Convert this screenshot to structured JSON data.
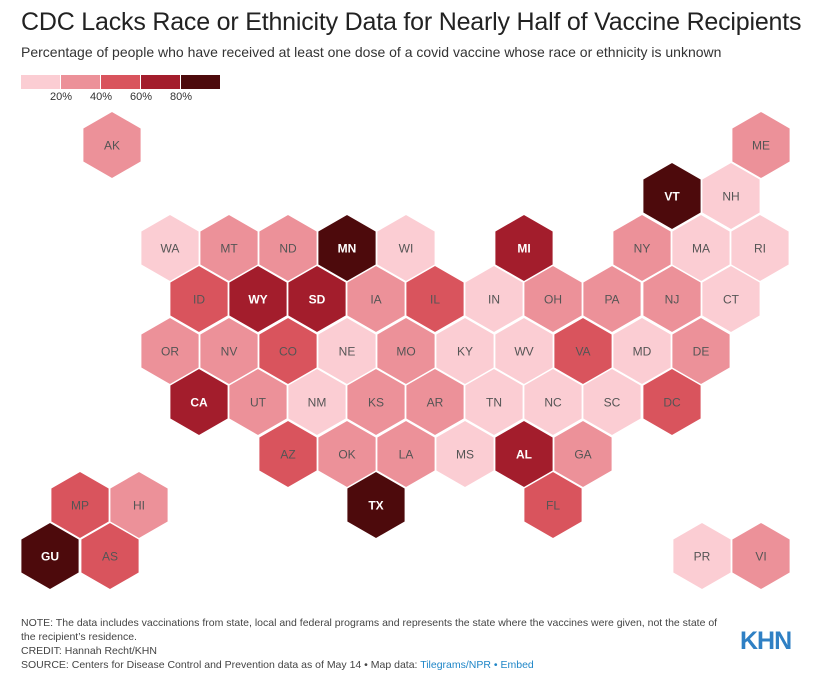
{
  "title": "CDC Lacks Race or Ethnicity Data for Nearly Half of Vaccine Recipients",
  "subtitle": "Percentage of people who have received at least one dose of a covid vaccine whose race or ethnicity is unknown",
  "legend": {
    "colors": [
      "#fbcdd3",
      "#ec9199",
      "#d9545d",
      "#a31d2c",
      "#4d0a0c"
    ],
    "ticks": [
      "20%",
      "40%",
      "60%",
      "80%"
    ]
  },
  "bin_colors": [
    "#fbcdd3",
    "#ec9199",
    "#d9545d",
    "#a31d2c",
    "#4d0a0c"
  ],
  "states": [
    {
      "abbr": "AK",
      "bin": 1
    },
    {
      "abbr": "ME",
      "bin": 1
    },
    {
      "abbr": "VT",
      "bin": 4
    },
    {
      "abbr": "NH",
      "bin": 0
    },
    {
      "abbr": "WA",
      "bin": 0
    },
    {
      "abbr": "MT",
      "bin": 1
    },
    {
      "abbr": "ND",
      "bin": 1
    },
    {
      "abbr": "MN",
      "bin": 4
    },
    {
      "abbr": "WI",
      "bin": 0
    },
    {
      "abbr": "MI",
      "bin": 3
    },
    {
      "abbr": "NY",
      "bin": 1
    },
    {
      "abbr": "MA",
      "bin": 0
    },
    {
      "abbr": "RI",
      "bin": 0
    },
    {
      "abbr": "ID",
      "bin": 2
    },
    {
      "abbr": "WY",
      "bin": 3
    },
    {
      "abbr": "SD",
      "bin": 3
    },
    {
      "abbr": "IA",
      "bin": 1
    },
    {
      "abbr": "IL",
      "bin": 2
    },
    {
      "abbr": "IN",
      "bin": 0
    },
    {
      "abbr": "OH",
      "bin": 1
    },
    {
      "abbr": "PA",
      "bin": 1
    },
    {
      "abbr": "NJ",
      "bin": 1
    },
    {
      "abbr": "CT",
      "bin": 0
    },
    {
      "abbr": "OR",
      "bin": 1
    },
    {
      "abbr": "NV",
      "bin": 1
    },
    {
      "abbr": "CO",
      "bin": 2
    },
    {
      "abbr": "NE",
      "bin": 0
    },
    {
      "abbr": "MO",
      "bin": 1
    },
    {
      "abbr": "KY",
      "bin": 0
    },
    {
      "abbr": "WV",
      "bin": 0
    },
    {
      "abbr": "VA",
      "bin": 2
    },
    {
      "abbr": "MD",
      "bin": 0
    },
    {
      "abbr": "DE",
      "bin": 1
    },
    {
      "abbr": "CA",
      "bin": 3
    },
    {
      "abbr": "UT",
      "bin": 1
    },
    {
      "abbr": "NM",
      "bin": 0
    },
    {
      "abbr": "KS",
      "bin": 1
    },
    {
      "abbr": "AR",
      "bin": 1
    },
    {
      "abbr": "TN",
      "bin": 0
    },
    {
      "abbr": "NC",
      "bin": 0
    },
    {
      "abbr": "SC",
      "bin": 0
    },
    {
      "abbr": "DC",
      "bin": 2
    },
    {
      "abbr": "AZ",
      "bin": 2
    },
    {
      "abbr": "OK",
      "bin": 1
    },
    {
      "abbr": "LA",
      "bin": 1
    },
    {
      "abbr": "MS",
      "bin": 0
    },
    {
      "abbr": "AL",
      "bin": 3
    },
    {
      "abbr": "GA",
      "bin": 1
    },
    {
      "abbr": "TX",
      "bin": 4
    },
    {
      "abbr": "FL",
      "bin": 2
    },
    {
      "abbr": "MP",
      "bin": 2
    },
    {
      "abbr": "HI",
      "bin": 1
    },
    {
      "abbr": "GU",
      "bin": 4
    },
    {
      "abbr": "AS",
      "bin": 2
    },
    {
      "abbr": "PR",
      "bin": 0
    },
    {
      "abbr": "VI",
      "bin": 1
    }
  ],
  "notes": {
    "note": "NOTE: The data includes vaccinations from state, local and federal programs and represents the state where the vaccines were given, not the state of the recipient’s residence.",
    "credit": "CREDIT: Hannah Recht/KHN",
    "source": "SOURCE: Centers for Disease Control and Prevention data as of May 14 • Map data: ",
    "map_link": "Tilegrams/NPR",
    "separator": " • ",
    "embed_link": "Embed"
  },
  "logo": "KHN"
}
